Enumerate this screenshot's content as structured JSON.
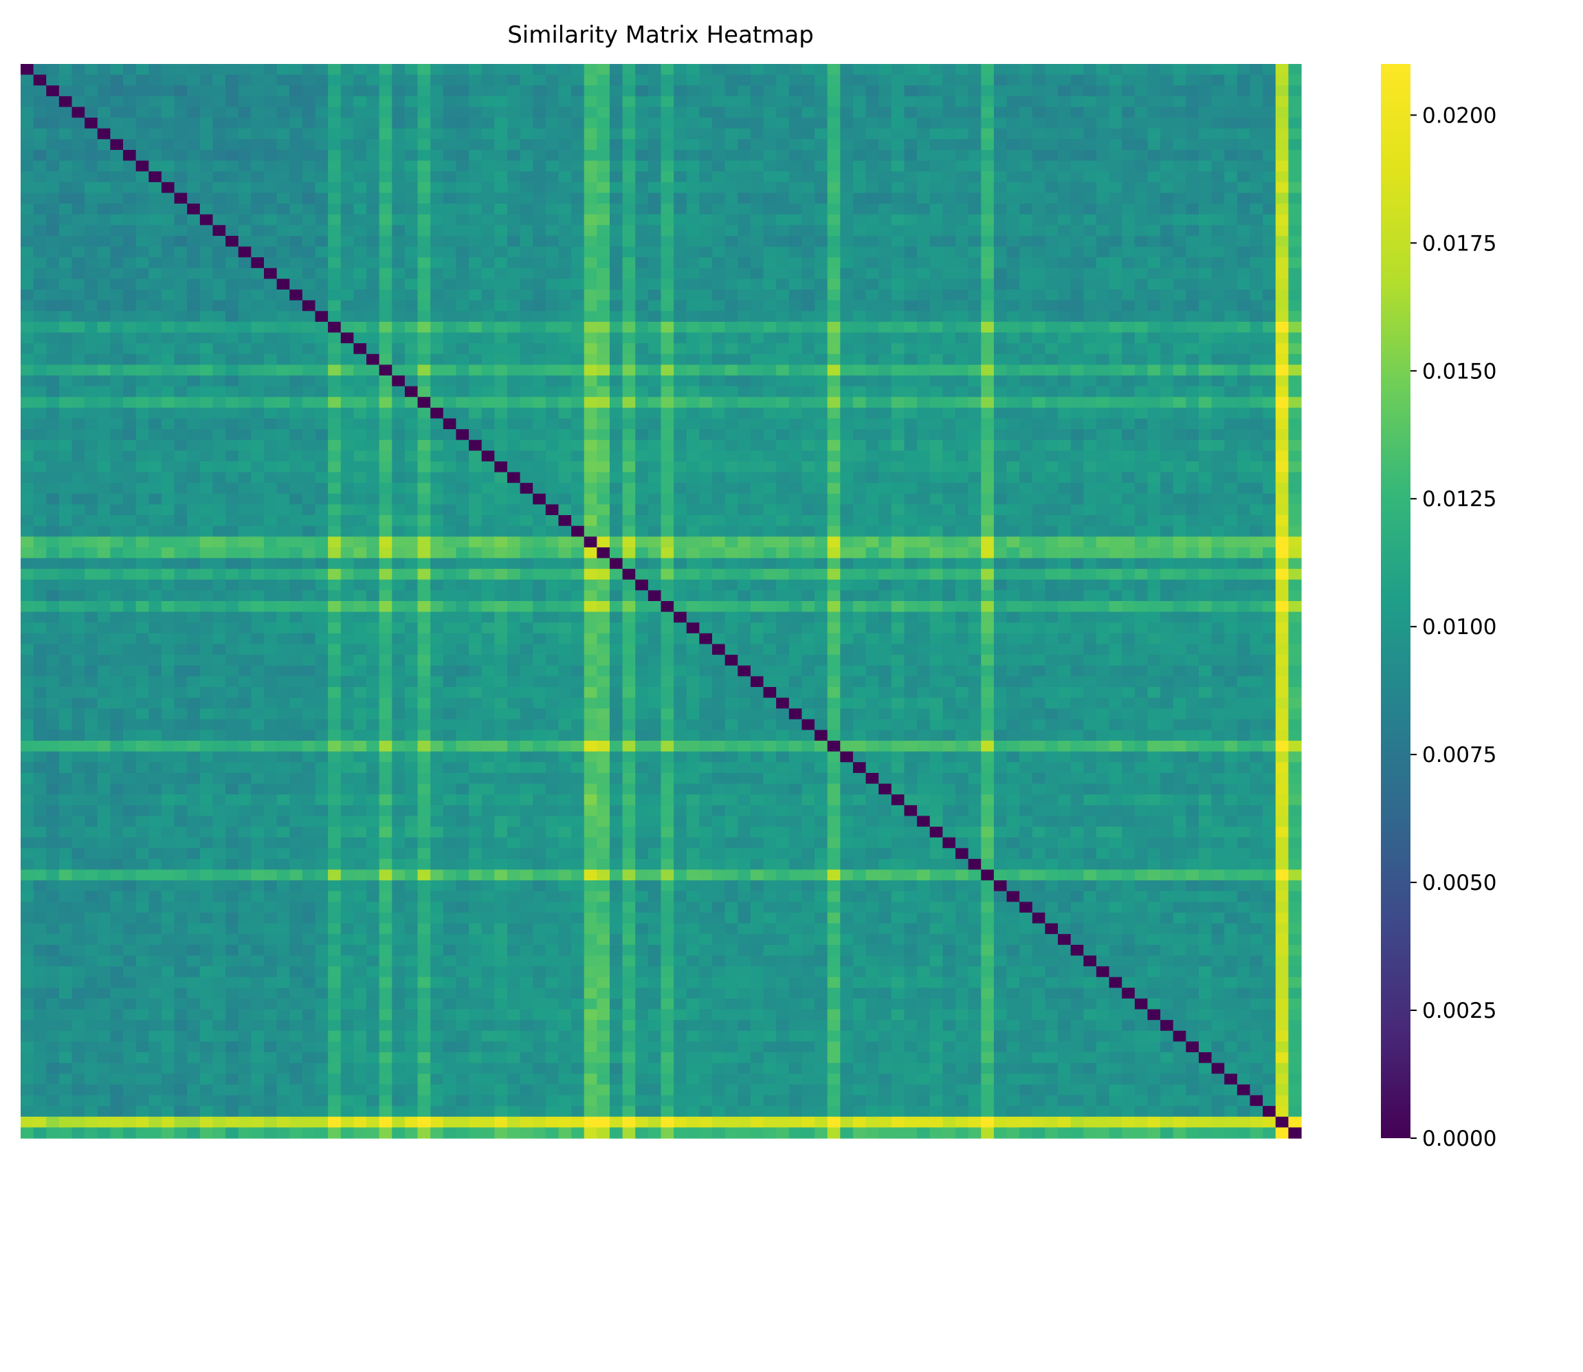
{
  "chart_data": {
    "type": "heatmap",
    "title": "Similarity Matrix Heatmap",
    "xlabel": "",
    "ylabel": "",
    "size": 100,
    "diagonal_value": 0.0,
    "value_range": [
      0.0,
      0.021
    ],
    "colormap": "viridis",
    "colorbar": {
      "ticks": [
        0.0,
        0.0025,
        0.005,
        0.0075,
        0.01,
        0.0125,
        0.015,
        0.0175,
        0.02
      ],
      "tick_labels": [
        "0.0000",
        "0.0025",
        "0.0050",
        "0.0075",
        "0.0100",
        "0.0125",
        "0.0150",
        "0.0175",
        "0.0200"
      ]
    },
    "row_col_strength": [
      0.0095,
      0.009,
      0.0088,
      0.0092,
      0.009,
      0.0091,
      0.0093,
      0.009,
      0.0089,
      0.0094,
      0.0093,
      0.0095,
      0.009,
      0.0091,
      0.0095,
      0.0093,
      0.009,
      0.0092,
      0.0094,
      0.0093,
      0.0094,
      0.0092,
      0.0091,
      0.0094,
      0.0115,
      0.01,
      0.0101,
      0.0098,
      0.012,
      0.0096,
      0.01,
      0.012,
      0.01,
      0.0096,
      0.0095,
      0.0101,
      0.01,
      0.0103,
      0.0098,
      0.0097,
      0.0096,
      0.0098,
      0.01,
      0.0098,
      0.0135,
      0.0131,
      0.0096,
      0.012,
      0.0096,
      0.0097,
      0.012,
      0.0098,
      0.01,
      0.0098,
      0.0096,
      0.0097,
      0.0095,
      0.0096,
      0.0098,
      0.0097,
      0.0096,
      0.0096,
      0.0097,
      0.0128,
      0.0097,
      0.0098,
      0.0096,
      0.0096,
      0.0102,
      0.0096,
      0.0098,
      0.0101,
      0.0096,
      0.0097,
      0.0098,
      0.0128,
      0.0094,
      0.0095,
      0.0095,
      0.0095,
      0.0095,
      0.0096,
      0.0094,
      0.0095,
      0.0097,
      0.0098,
      0.0095,
      0.0096,
      0.0098,
      0.0095,
      0.0097,
      0.0095,
      0.0098,
      0.0095,
      0.0096,
      0.0095,
      0.0095,
      0.0096,
      0.0178,
      0.0125
    ]
  }
}
